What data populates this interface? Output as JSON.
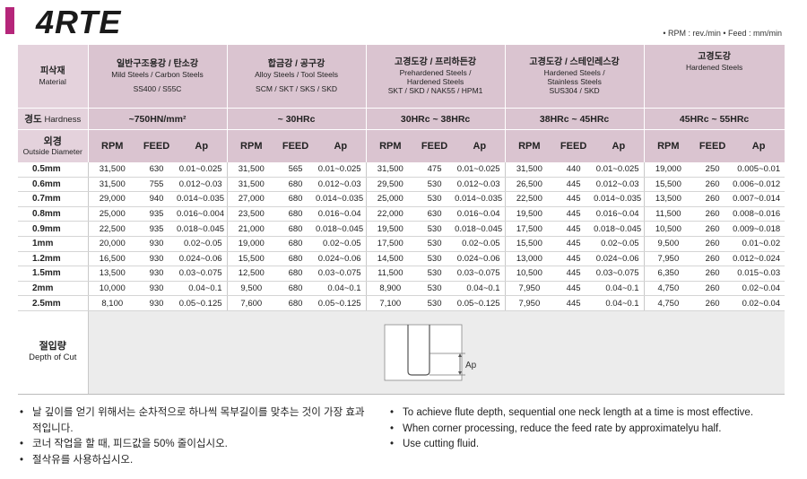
{
  "header": {
    "title": "4RTE",
    "units": "• RPM : rev./min   • Feed : mm/min"
  },
  "table": {
    "label_material_ko": "피삭재",
    "label_material_en": "Material",
    "label_hardness_ko": "경도",
    "label_hardness_en": "Hardness",
    "label_od_ko": "외경",
    "label_od_en": "Outside Diameter",
    "materials": [
      {
        "ko": "일반구조용강 / 탄소강",
        "en1": "Mild Steels / Carbon Steels",
        "en2": "",
        "grades": "SS400 / S55C",
        "hardness": "~750HN/mm²"
      },
      {
        "ko": "합금강 / 공구강",
        "en1": "Alloy Steels / Tool Steels",
        "en2": "",
        "grades": "SCM / SKT / SKS / SKD",
        "hardness": "~ 30HRc"
      },
      {
        "ko": "고경도강 / 프리하든강",
        "en1": "Prehardened Steels /",
        "en2": "Hardened Steels",
        "grades": "SKT / SKD / NAK55 / HPM1",
        "hardness": "30HRc ~ 38HRc"
      },
      {
        "ko": "고경도강 / 스테인레스강",
        "en1": "Hardened Steels /",
        "en2": "Stainless Steels",
        "grades": "SUS304 / SKD",
        "hardness": "38HRc ~ 45HRc"
      },
      {
        "ko": "고경도강",
        "en1": "Hardened Steels",
        "en2": "",
        "grades": "",
        "hardness": "45HRc ~ 55HRc"
      }
    ],
    "col_labels": {
      "rpm": "RPM",
      "feed": "FEED",
      "ap": "Ap"
    },
    "rows": [
      {
        "dia": "0.5mm",
        "v": [
          [
            "31,500",
            "630",
            "0.01~0.025"
          ],
          [
            "31,500",
            "565",
            "0.01~0.025"
          ],
          [
            "31,500",
            "475",
            "0.01~0.025"
          ],
          [
            "31,500",
            "440",
            "0.01~0.025"
          ],
          [
            "19,000",
            "250",
            "0.005~0.01"
          ]
        ]
      },
      {
        "dia": "0.6mm",
        "v": [
          [
            "31,500",
            "755",
            "0.012~0.03"
          ],
          [
            "31,500",
            "680",
            "0.012~0.03"
          ],
          [
            "29,500",
            "530",
            "0.012~0.03"
          ],
          [
            "26,500",
            "445",
            "0.012~0.03"
          ],
          [
            "15,500",
            "260",
            "0.006~0.012"
          ]
        ]
      },
      {
        "dia": "0.7mm",
        "v": [
          [
            "29,000",
            "940",
            "0.014~0.035"
          ],
          [
            "27,000",
            "680",
            "0.014~0.035"
          ],
          [
            "25,000",
            "530",
            "0.014~0.035"
          ],
          [
            "22,500",
            "445",
            "0.014~0.035"
          ],
          [
            "13,500",
            "260",
            "0.007~0.014"
          ]
        ]
      },
      {
        "dia": "0.8mm",
        "v": [
          [
            "25,000",
            "935",
            "0.016~0.004"
          ],
          [
            "23,500",
            "680",
            "0.016~0.04"
          ],
          [
            "22,000",
            "630",
            "0.016~0.04"
          ],
          [
            "19,500",
            "445",
            "0.016~0.04"
          ],
          [
            "11,500",
            "260",
            "0.008~0.016"
          ]
        ]
      },
      {
        "dia": "0.9mm",
        "v": [
          [
            "22,500",
            "935",
            "0.018~0.045"
          ],
          [
            "21,000",
            "680",
            "0.018~0.045"
          ],
          [
            "19,500",
            "530",
            "0.018~0.045"
          ],
          [
            "17,500",
            "445",
            "0.018~0.045"
          ],
          [
            "10,500",
            "260",
            "0.009~0.018"
          ]
        ]
      },
      {
        "dia": "1mm",
        "v": [
          [
            "20,000",
            "930",
            "0.02~0.05"
          ],
          [
            "19,000",
            "680",
            "0.02~0.05"
          ],
          [
            "17,500",
            "530",
            "0.02~0.05"
          ],
          [
            "15,500",
            "445",
            "0.02~0.05"
          ],
          [
            "9,500",
            "260",
            "0.01~0.02"
          ]
        ]
      },
      {
        "dia": "1.2mm",
        "v": [
          [
            "16,500",
            "930",
            "0.024~0.06"
          ],
          [
            "15,500",
            "680",
            "0.024~0.06"
          ],
          [
            "14,500",
            "530",
            "0.024~0.06"
          ],
          [
            "13,000",
            "445",
            "0.024~0.06"
          ],
          [
            "7,950",
            "260",
            "0.012~0.024"
          ]
        ]
      },
      {
        "dia": "1.5mm",
        "v": [
          [
            "13,500",
            "930",
            "0.03~0.075"
          ],
          [
            "12,500",
            "680",
            "0.03~0.075"
          ],
          [
            "11,500",
            "530",
            "0.03~0.075"
          ],
          [
            "10,500",
            "445",
            "0.03~0.075"
          ],
          [
            "6,350",
            "260",
            "0.015~0.03"
          ]
        ]
      },
      {
        "dia": "2mm",
        "v": [
          [
            "10,000",
            "930",
            "0.04~0.1"
          ],
          [
            "9,500",
            "680",
            "0.04~0.1"
          ],
          [
            "8,900",
            "530",
            "0.04~0.1"
          ],
          [
            "7,950",
            "445",
            "0.04~0.1"
          ],
          [
            "4,750",
            "260",
            "0.02~0.04"
          ]
        ]
      },
      {
        "dia": "2.5mm",
        "v": [
          [
            "8,100",
            "930",
            "0.05~0.125"
          ],
          [
            "7,600",
            "680",
            "0.05~0.125"
          ],
          [
            "7,100",
            "530",
            "0.05~0.125"
          ],
          [
            "7,950",
            "445",
            "0.04~0.1"
          ],
          [
            "4,750",
            "260",
            "0.02~0.04"
          ]
        ]
      }
    ],
    "doc_ko": "절입량",
    "doc_en": "Depth of Cut",
    "doc_diagram_label": "Ap"
  },
  "notes_ko": [
    "날 깊이를 얻기 위해서는 순차적으로 하나씩 목부길이를 맞추는 것이 가장 효과적입니다.",
    "코너 작업을 할 때, 피드값을 50% 줄이십시오.",
    "절삭유를 사용하십시오."
  ],
  "notes_en": [
    "To achieve flute depth, sequential one neck length at a time is most effective.",
    "When corner processing, reduce the feed rate by approximatelyu half.",
    "Use cutting fluid."
  ]
}
